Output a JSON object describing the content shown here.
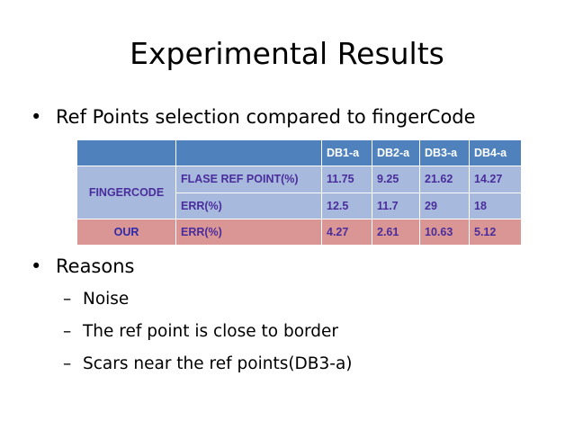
{
  "title": "Experimental Results",
  "bullets": [
    {
      "mark": "•",
      "text": "Ref Points selection compared to fingerCode"
    },
    {
      "mark": "•",
      "text": "Reasons"
    }
  ],
  "sub_bullets": [
    {
      "mark": "–",
      "text": "Noise"
    },
    {
      "mark": "–",
      "text": "The ref point is close to border"
    },
    {
      "mark": "–",
      "text": "Scars near the ref points(DB3-a)"
    }
  ],
  "table": {
    "headers": [
      "DB1-a",
      "DB2-a",
      "DB3-a",
      "DB4-a"
    ],
    "fingercode": {
      "group": "FINGERCODE",
      "rows": [
        {
          "metric": "FLASE REF POINT(%)",
          "values": [
            "11.75",
            "9.25",
            "21.62",
            "14.27"
          ]
        },
        {
          "metric": "ERR(%)",
          "values": [
            "12.5",
            "11.7",
            "29",
            "18"
          ]
        }
      ]
    },
    "our": {
      "group": "OUR",
      "metric": "ERR(%)",
      "values": [
        "4.27",
        "2.61",
        "10.63",
        "5.12"
      ]
    },
    "colors": {
      "header_bg": "#4f81bd",
      "fingercode_bg": "#a7b9dc",
      "our_bg": "#d99694",
      "cell_text": "#4a2d9c"
    }
  }
}
